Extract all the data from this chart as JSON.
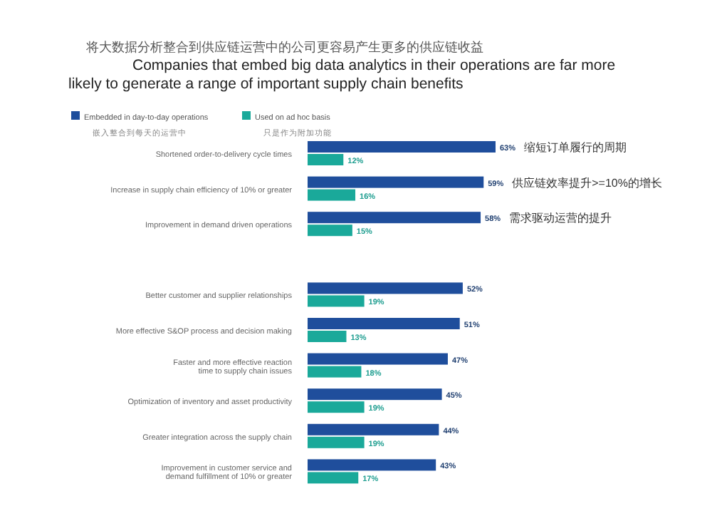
{
  "chart_data": {
    "type": "bar",
    "orientation": "horizontal",
    "title": "将大数据分析整合到供应链运营中的公司更容易产生更多的供应链收益",
    "subtitle": "Companies that embed big data analytics in their operations are far more likely to generate a range of important supply chain benefits",
    "categories": [
      "Shortened order-to-delivery cycle times",
      "Increase in supply chain efficiency of 10% or greater",
      "Improvement in demand driven operations",
      null,
      "Better customer and supplier relationships",
      "More effective S&OP process and decision making",
      "Faster and more effective reaction\ntime to supply chain issues",
      "Optimization of inventory and asset productivity",
      "Greater integration across the supply chain",
      "Improvement in customer service and\ndemand fulfillment of 10% or greater"
    ],
    "series": [
      {
        "name": "Embedded in day-to-day operations\n嵌入整合到每天的运营中",
        "color": "#1f4e9c",
        "values": [
          63,
          59,
          58,
          null,
          52,
          51,
          47,
          45,
          44,
          43
        ],
        "value_labels": [
          "63%",
          "59%",
          "58%",
          null,
          "52%",
          "51%",
          "47%",
          "45%",
          "44%",
          "43%"
        ]
      },
      {
        "name": "Used on ad hoc basis\n只是作为附加功能",
        "color": "#1aa99a",
        "values": [
          12,
          16,
          15,
          null,
          19,
          13,
          18,
          19,
          19,
          17
        ],
        "value_labels": [
          "12%",
          "16%",
          "15%",
          null,
          "19%",
          "13%",
          "18%",
          "19%",
          "19%",
          "17%"
        ]
      }
    ],
    "annotations": [
      {
        "text": "缩短订单履行的周期",
        "x": 63,
        "y": "Shortened order-to-delivery cycle times"
      },
      {
        "text": "供应链效率提升>=10%的增长",
        "x": 59,
        "y": "Increase in supply chain efficiency of 10% or greater"
      },
      {
        "text": "需求驱动运营的提升",
        "x": 58,
        "y": "Improvement in demand driven operations"
      }
    ],
    "legend": "top left"
  }
}
